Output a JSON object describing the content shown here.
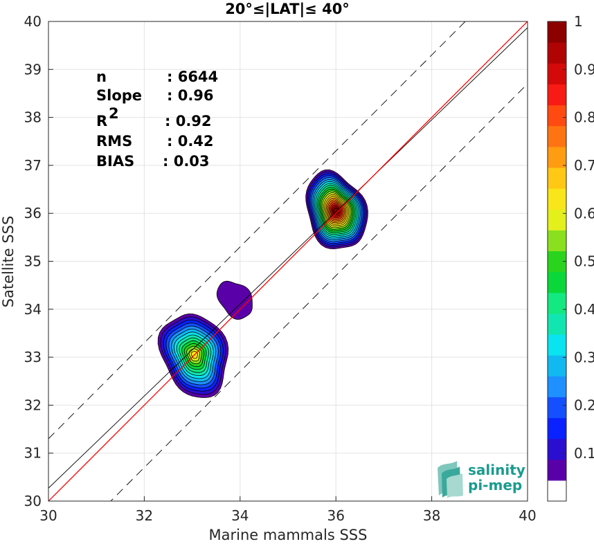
{
  "chart_data": {
    "type": "contour-scatter",
    "title": "20°≤|LAT|≤ 40°",
    "xlabel": "Marine mammals SSS",
    "ylabel": "Satellite SSS",
    "xlim": [
      30,
      40
    ],
    "ylim": [
      30,
      40
    ],
    "xticks": [
      "30",
      "32",
      "34",
      "36",
      "38",
      "40"
    ],
    "yticks": [
      "30",
      "31",
      "32",
      "33",
      "34",
      "35",
      "36",
      "37",
      "38",
      "39",
      "40"
    ],
    "grid": true,
    "stats": [
      {
        "label": "n",
        "value": ": 6644"
      },
      {
        "label": "Slope",
        "value": ": 0.96"
      },
      {
        "label": "R",
        "sup": "2",
        "value": ": 0.92"
      },
      {
        "label": "RMS",
        "value": ": 0.42"
      },
      {
        "label": "BIAS",
        "value": ": 0.03"
      }
    ],
    "lines": {
      "identity": {
        "color": "#ff0000",
        "slope": 1,
        "intercept": 0
      },
      "fit": {
        "color": "#000000",
        "slope": 0.96,
        "intercept": 1.47
      },
      "bounds": {
        "color": "#000000",
        "dash": true,
        "offset": 1.3
      }
    },
    "density_clusters": [
      {
        "cx": 36.0,
        "cy": 36.05,
        "peak": 1.0
      },
      {
        "cx": 33.05,
        "cy": 33.05,
        "peak": 0.65
      },
      {
        "cx": 33.9,
        "cy": 34.2,
        "peak": 0.12
      }
    ],
    "colorbar": {
      "ticks": [
        "0.1",
        "0.2",
        "0.3",
        "0.4",
        "0.5",
        "0.6",
        "0.7",
        "0.8",
        "0.9",
        "1"
      ],
      "colors": [
        "#ffffff",
        "#5a00a8",
        "#2a0fd0",
        "#0a22ff",
        "#1450ff",
        "#1e90ff",
        "#12b8f0",
        "#0ae3f0",
        "#12e6b0",
        "#14e880",
        "#0ad83a",
        "#2ad41e",
        "#8ae01e",
        "#e4f01c",
        "#f8e61a",
        "#ffc814",
        "#ff9c12",
        "#ff7412",
        "#ff4a12",
        "#f81a14",
        "#d40a0a",
        "#b00404",
        "#8c0000"
      ]
    }
  },
  "logo": {
    "line1": "salinity",
    "line2": "pi-mep"
  }
}
